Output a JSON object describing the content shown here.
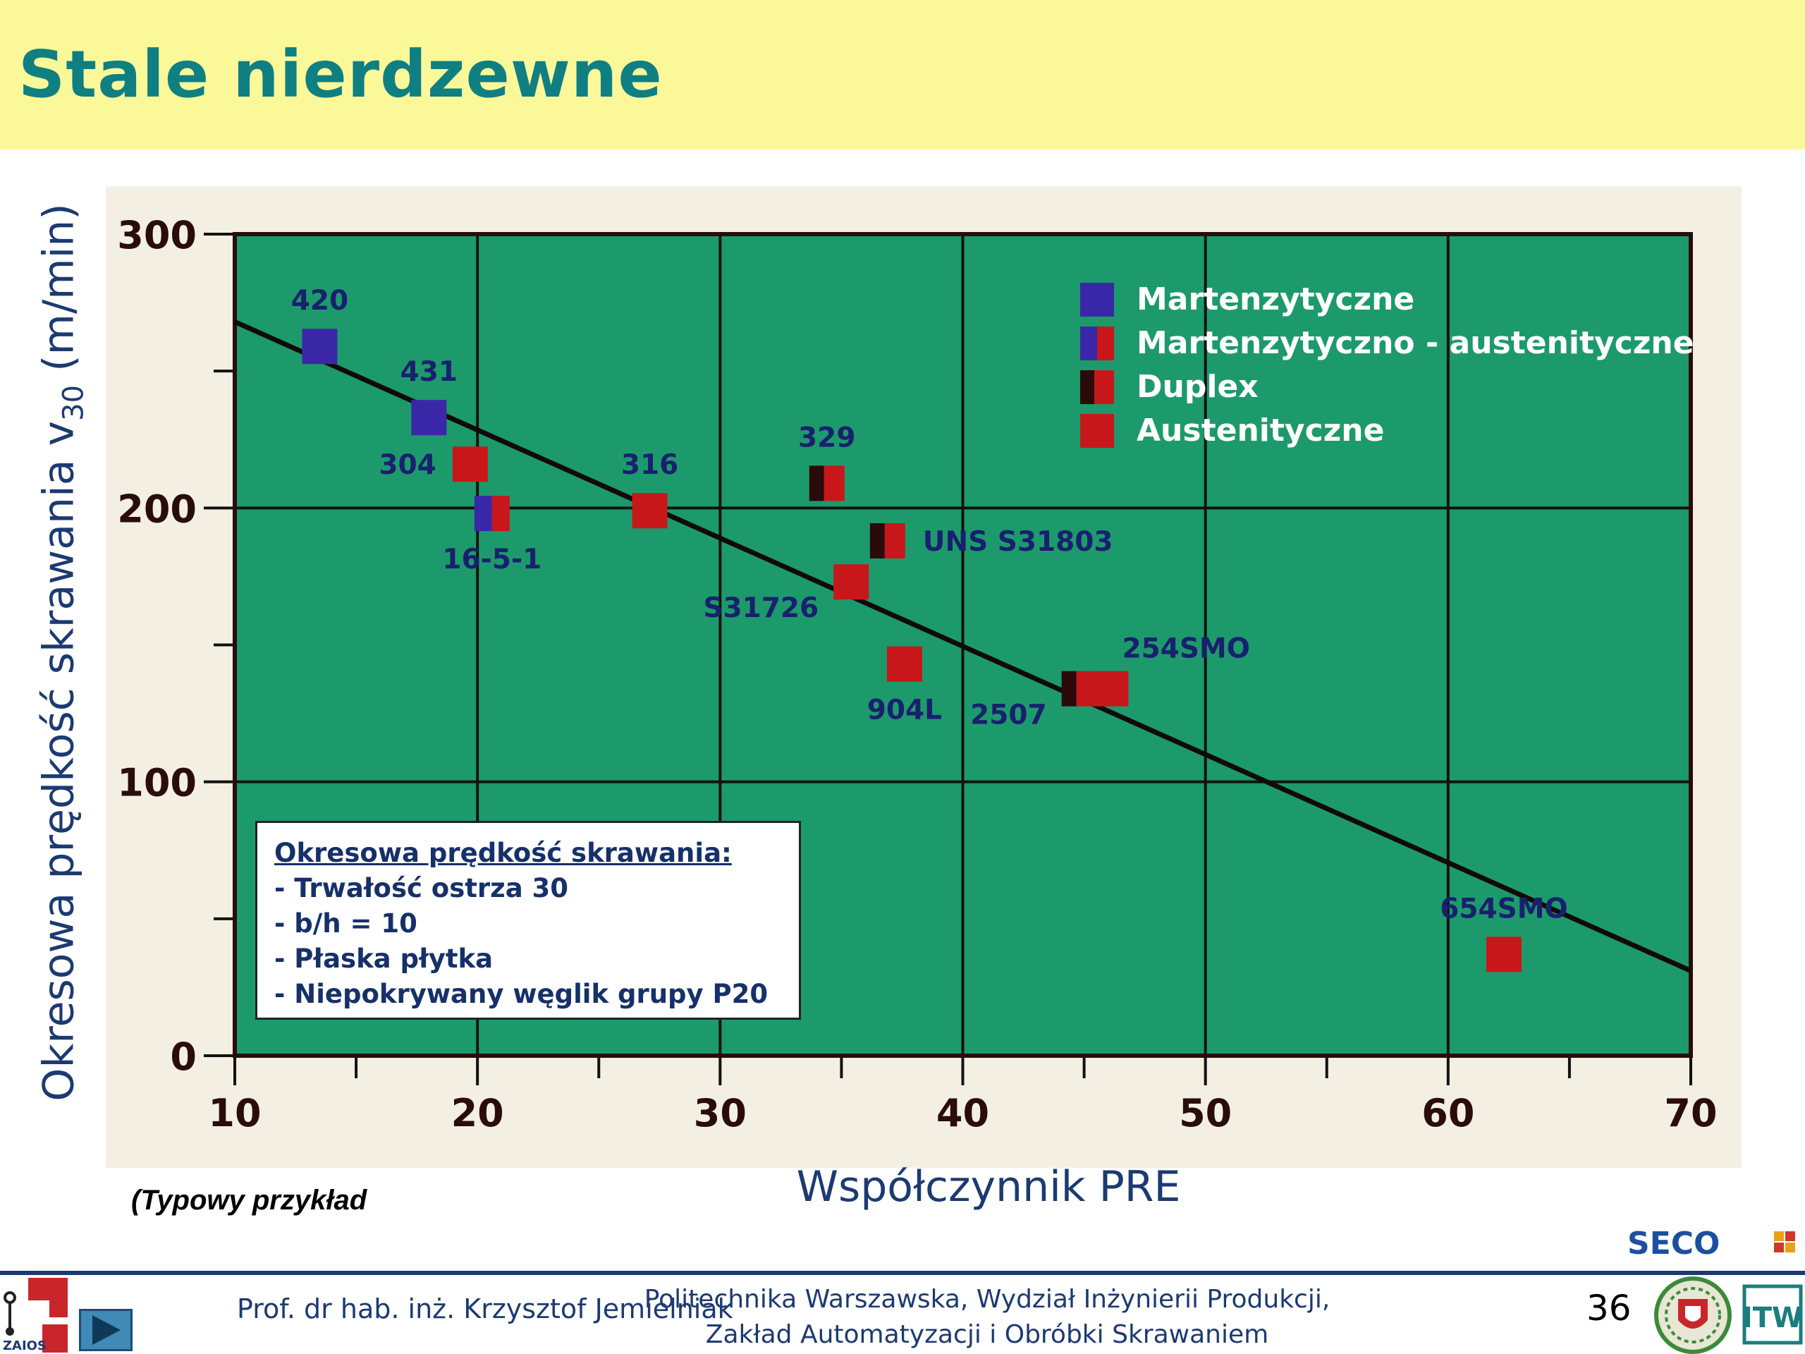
{
  "slide": {
    "title": "Stale nierdzewne",
    "note": "(Typowy przykład",
    "page_number": "36",
    "footer_author": "Prof. dr hab. inż. Krzysztof Jemielniak",
    "footer_institution_line1": "Politechnika Warszawska, Wydział Inżynierii Produkcji,",
    "footer_institution_line2": "Zakład Automatyzacji i Obróbki Skrawaniem",
    "logo_zaios_text": "ZAIOS",
    "logo_seco_text": "SECO",
    "logo_itw_text": "ITW"
  },
  "chart_data": {
    "type": "scatter",
    "title": "",
    "xlabel": "Współczynnik PRE",
    "ylabel_main": "Okresowa prędkość skrawania v",
    "ylabel_sub": "30",
    "ylabel_unit": " (m/min)",
    "xlim": [
      10,
      70
    ],
    "ylim": [
      0,
      300
    ],
    "x_ticks": [
      10,
      20,
      30,
      40,
      50,
      60,
      70
    ],
    "y_ticks": [
      0,
      100,
      200,
      300
    ],
    "grid": true,
    "colors": {
      "plot_bg": "#1d9a6c",
      "martensitic": "#3a27a8",
      "austenitic": "#c8171b",
      "duplex_dark": "#2a0a0a",
      "point_label": "#19206e",
      "legend_text": "#ffffff",
      "trend_line": "#120a0a"
    },
    "legend": {
      "placement": "top-right",
      "entries": [
        {
          "name": "Martenzytyczne",
          "kind": "martensitic"
        },
        {
          "name": "Martenzytyczno - austenityczne",
          "kind": "mart-aust"
        },
        {
          "name": "Duplex",
          "kind": "duplex"
        },
        {
          "name": "Austenityczne",
          "kind": "austenitic"
        }
      ]
    },
    "trend_line": {
      "from": [
        10,
        268
      ],
      "to": [
        70,
        31
      ]
    },
    "points": [
      {
        "label": "420",
        "x": 13.5,
        "y": 259,
        "kind": "martensitic",
        "label_pos": "above"
      },
      {
        "label": "431",
        "x": 18,
        "y": 233,
        "kind": "martensitic",
        "label_pos": "above"
      },
      {
        "label": "304",
        "x": 19.7,
        "y": 216,
        "kind": "austenitic",
        "label_pos": "left"
      },
      {
        "label": "16-5-1",
        "x": 20.6,
        "y": 198,
        "kind": "mart-aust",
        "label_pos": "below"
      },
      {
        "label": "316",
        "x": 27.1,
        "y": 199,
        "kind": "austenitic",
        "label_pos": "above"
      },
      {
        "label": "329",
        "x": 34.4,
        "y": 209,
        "kind": "duplex",
        "label_pos": "above"
      },
      {
        "label": "UNS S31803",
        "x": 36.9,
        "y": 188,
        "kind": "duplex",
        "label_pos": "right"
      },
      {
        "label": "S31726",
        "x": 35.4,
        "y": 173,
        "kind": "austenitic",
        "label_pos": "below-left"
      },
      {
        "label": "904L",
        "x": 37.6,
        "y": 143,
        "kind": "austenitic",
        "label_pos": "below"
      },
      {
        "label": "2507",
        "x": 44.8,
        "y": 134,
        "kind": "duplex",
        "label_pos": "below-left"
      },
      {
        "label": "254SMO",
        "x": 46.1,
        "y": 134,
        "kind": "austenitic",
        "label_pos": "above-right"
      },
      {
        "label": "654SMO",
        "x": 62.3,
        "y": 37,
        "kind": "austenitic",
        "label_pos": "above"
      }
    ]
  },
  "conditions": {
    "heading": "Okresowa prędkość skrawania:",
    "items": [
      "- Trwałość ostrza 30",
      "- b/h = 10",
      "- Płaska płytka",
      "- Niepokrywany węglik grupy P20"
    ]
  }
}
